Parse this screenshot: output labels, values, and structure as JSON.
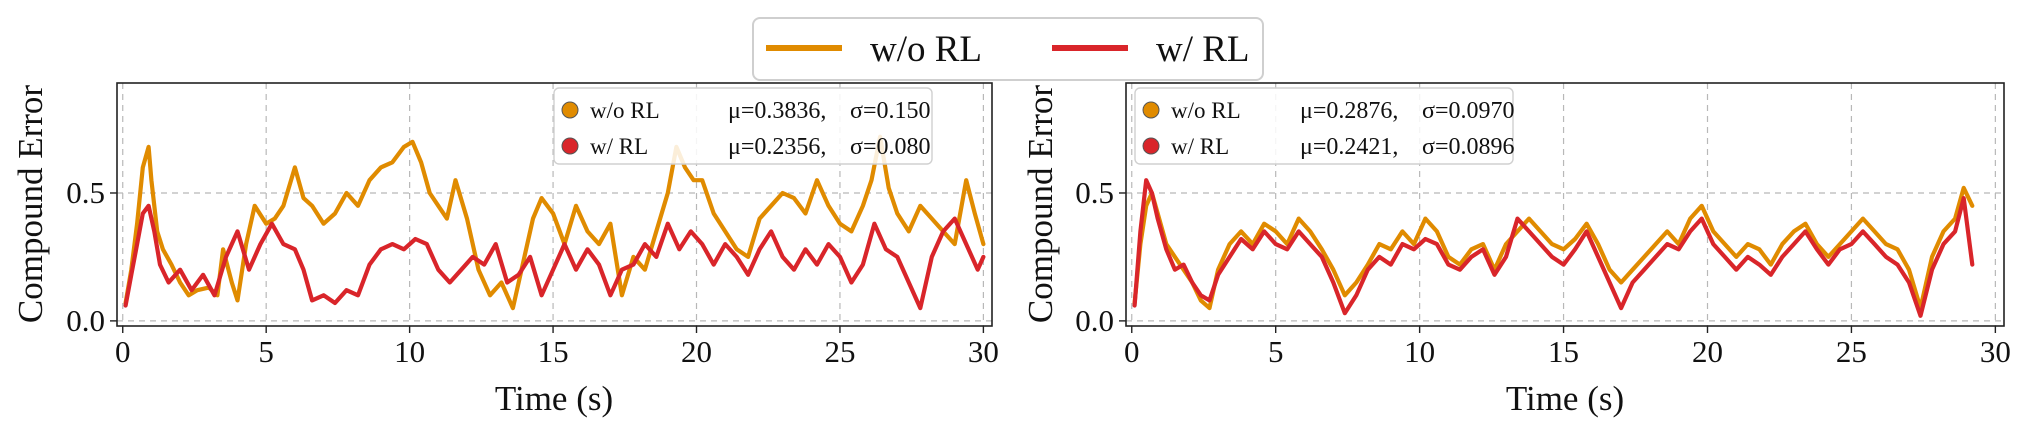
{
  "legend": {
    "items": [
      {
        "label": "w/o RL",
        "color": "#E08B00"
      },
      {
        "label": "w/ RL",
        "color": "#D9252A"
      }
    ]
  },
  "chart_data": [
    {
      "type": "line",
      "title": "",
      "xlabel": "Time (s)",
      "ylabel": "Compound Error",
      "xlim": [
        -0.2,
        30.3
      ],
      "ylim": [
        -0.02,
        0.93
      ],
      "xticks": [
        0,
        5,
        10,
        15,
        20,
        25,
        30
      ],
      "yticks": [
        0.0,
        0.5
      ],
      "xtick_labels": [
        "0",
        "5",
        "10",
        "15",
        "20",
        "25",
        "30"
      ],
      "ytick_labels": [
        "0.0",
        "0.5"
      ],
      "grid": true,
      "stats": [
        {
          "name": "w/o RL",
          "mu": "μ=0.3836,",
          "sigma": "σ=0.150"
        },
        {
          "name": "w/ RL",
          "mu": "μ=0.2356,",
          "sigma": "σ=0.080"
        }
      ],
      "series": [
        {
          "name": "w/o RL",
          "color": "#E08B00",
          "x": [
            0.1,
            0.3,
            0.5,
            0.7,
            0.9,
            1.0,
            1.2,
            1.4,
            1.7,
            2.0,
            2.3,
            2.6,
            3.0,
            3.3,
            3.5,
            3.8,
            4.0,
            4.3,
            4.6,
            5.0,
            5.3,
            5.6,
            6.0,
            6.3,
            6.6,
            7.0,
            7.4,
            7.8,
            8.2,
            8.6,
            9.0,
            9.4,
            9.8,
            10.1,
            10.4,
            10.7,
            11.0,
            11.3,
            11.6,
            12.0,
            12.4,
            12.8,
            13.2,
            13.6,
            14.0,
            14.3,
            14.6,
            15.0,
            15.4,
            15.8,
            16.2,
            16.6,
            17.0,
            17.4,
            17.8,
            18.2,
            18.6,
            19.0,
            19.3,
            19.6,
            19.9,
            20.2,
            20.6,
            21.0,
            21.4,
            21.8,
            22.2,
            22.6,
            23.0,
            23.4,
            23.8,
            24.2,
            24.6,
            25.0,
            25.4,
            25.8,
            26.1,
            26.4,
            26.7,
            27.0,
            27.4,
            27.8,
            28.2,
            28.6,
            29.0,
            29.4,
            29.7,
            30.0
          ],
          "y": [
            0.07,
            0.2,
            0.38,
            0.6,
            0.68,
            0.55,
            0.35,
            0.28,
            0.22,
            0.15,
            0.1,
            0.12,
            0.13,
            0.1,
            0.28,
            0.15,
            0.08,
            0.3,
            0.45,
            0.38,
            0.4,
            0.45,
            0.6,
            0.48,
            0.45,
            0.38,
            0.42,
            0.5,
            0.45,
            0.55,
            0.6,
            0.62,
            0.68,
            0.7,
            0.62,
            0.5,
            0.45,
            0.4,
            0.55,
            0.4,
            0.2,
            0.1,
            0.15,
            0.05,
            0.25,
            0.4,
            0.48,
            0.42,
            0.3,
            0.45,
            0.35,
            0.3,
            0.38,
            0.1,
            0.25,
            0.2,
            0.35,
            0.5,
            0.68,
            0.6,
            0.55,
            0.55,
            0.42,
            0.35,
            0.28,
            0.25,
            0.4,
            0.45,
            0.5,
            0.48,
            0.42,
            0.55,
            0.45,
            0.38,
            0.35,
            0.45,
            0.55,
            0.72,
            0.52,
            0.42,
            0.35,
            0.45,
            0.4,
            0.35,
            0.3,
            0.55,
            0.42,
            0.3
          ]
        },
        {
          "name": "w/ RL",
          "color": "#D9252A",
          "x": [
            0.1,
            0.3,
            0.5,
            0.7,
            0.9,
            1.1,
            1.3,
            1.6,
            2.0,
            2.4,
            2.8,
            3.2,
            3.6,
            4.0,
            4.4,
            4.8,
            5.2,
            5.6,
            6.0,
            6.3,
            6.6,
            7.0,
            7.4,
            7.8,
            8.2,
            8.6,
            9.0,
            9.4,
            9.8,
            10.2,
            10.6,
            11.0,
            11.4,
            11.8,
            12.2,
            12.6,
            13.0,
            13.4,
            13.8,
            14.2,
            14.6,
            15.0,
            15.4,
            15.8,
            16.2,
            16.6,
            17.0,
            17.4,
            17.8,
            18.2,
            18.6,
            19.0,
            19.4,
            19.8,
            20.2,
            20.6,
            21.0,
            21.4,
            21.8,
            22.2,
            22.6,
            23.0,
            23.4,
            23.8,
            24.2,
            24.6,
            25.0,
            25.4,
            25.8,
            26.2,
            26.6,
            27.0,
            27.4,
            27.8,
            28.2,
            28.6,
            29.0,
            29.4,
            29.8,
            30.0
          ],
          "y": [
            0.06,
            0.18,
            0.3,
            0.42,
            0.45,
            0.35,
            0.22,
            0.15,
            0.2,
            0.12,
            0.18,
            0.1,
            0.25,
            0.35,
            0.2,
            0.3,
            0.38,
            0.3,
            0.28,
            0.2,
            0.08,
            0.1,
            0.07,
            0.12,
            0.1,
            0.22,
            0.28,
            0.3,
            0.28,
            0.32,
            0.3,
            0.2,
            0.15,
            0.2,
            0.25,
            0.22,
            0.3,
            0.15,
            0.18,
            0.25,
            0.1,
            0.2,
            0.3,
            0.2,
            0.28,
            0.22,
            0.1,
            0.2,
            0.22,
            0.3,
            0.25,
            0.38,
            0.28,
            0.35,
            0.3,
            0.22,
            0.3,
            0.25,
            0.18,
            0.28,
            0.35,
            0.25,
            0.2,
            0.28,
            0.22,
            0.3,
            0.25,
            0.15,
            0.22,
            0.38,
            0.28,
            0.25,
            0.15,
            0.05,
            0.25,
            0.35,
            0.4,
            0.3,
            0.2,
            0.25
          ]
        }
      ]
    },
    {
      "type": "line",
      "title": "",
      "xlabel": "Time (s)",
      "ylabel": "Compound Error",
      "xlim": [
        -0.2,
        30.3
      ],
      "ylim": [
        -0.02,
        0.93
      ],
      "xticks": [
        0,
        5,
        10,
        15,
        20,
        25,
        30
      ],
      "yticks": [
        0.0,
        0.5
      ],
      "xtick_labels": [
        "0",
        "5",
        "10",
        "15",
        "20",
        "25",
        "30"
      ],
      "ytick_labels": [
        "0.0",
        "0.5"
      ],
      "grid": true,
      "stats": [
        {
          "name": "w/o RL",
          "mu": "μ=0.2876,",
          "sigma": "σ=0.0970"
        },
        {
          "name": "w/ RL",
          "mu": "μ=0.2421,",
          "sigma": "σ=0.0896"
        }
      ],
      "series": [
        {
          "name": "w/o RL",
          "color": "#E08B00",
          "x": [
            0.1,
            0.3,
            0.5,
            0.7,
            0.9,
            1.2,
            1.5,
            1.8,
            2.1,
            2.4,
            2.7,
            3.0,
            3.4,
            3.8,
            4.2,
            4.6,
            5.0,
            5.4,
            5.8,
            6.2,
            6.6,
            7.0,
            7.4,
            7.8,
            8.2,
            8.6,
            9.0,
            9.4,
            9.8,
            10.2,
            10.6,
            11.0,
            11.4,
            11.8,
            12.2,
            12.6,
            13.0,
            13.4,
            13.8,
            14.2,
            14.6,
            15.0,
            15.4,
            15.8,
            16.2,
            16.6,
            17.0,
            17.4,
            17.8,
            18.2,
            18.6,
            19.0,
            19.4,
            19.8,
            20.2,
            20.6,
            21.0,
            21.4,
            21.8,
            22.2,
            22.6,
            23.0,
            23.4,
            23.8,
            24.2,
            24.6,
            25.0,
            25.4,
            25.8,
            26.2,
            26.6,
            27.0,
            27.4,
            27.8,
            28.2,
            28.6,
            28.9,
            29.2
          ],
          "y": [
            0.07,
            0.3,
            0.45,
            0.5,
            0.42,
            0.3,
            0.25,
            0.2,
            0.15,
            0.08,
            0.05,
            0.2,
            0.3,
            0.35,
            0.3,
            0.38,
            0.35,
            0.3,
            0.4,
            0.35,
            0.28,
            0.2,
            0.1,
            0.15,
            0.22,
            0.3,
            0.28,
            0.35,
            0.3,
            0.4,
            0.35,
            0.25,
            0.22,
            0.28,
            0.3,
            0.2,
            0.3,
            0.35,
            0.4,
            0.35,
            0.3,
            0.28,
            0.32,
            0.38,
            0.3,
            0.2,
            0.15,
            0.2,
            0.25,
            0.3,
            0.35,
            0.3,
            0.4,
            0.45,
            0.35,
            0.3,
            0.25,
            0.3,
            0.28,
            0.22,
            0.3,
            0.35,
            0.38,
            0.3,
            0.25,
            0.3,
            0.35,
            0.4,
            0.35,
            0.3,
            0.28,
            0.2,
            0.05,
            0.25,
            0.35,
            0.4,
            0.52,
            0.45
          ]
        },
        {
          "name": "w/ RL",
          "color": "#D9252A",
          "x": [
            0.1,
            0.3,
            0.5,
            0.7,
            0.9,
            1.2,
            1.5,
            1.8,
            2.1,
            2.4,
            2.7,
            3.0,
            3.4,
            3.8,
            4.2,
            4.6,
            5.0,
            5.4,
            5.8,
            6.2,
            6.6,
            7.0,
            7.4,
            7.8,
            8.2,
            8.6,
            9.0,
            9.4,
            9.8,
            10.2,
            10.6,
            11.0,
            11.4,
            11.8,
            12.2,
            12.6,
            13.0,
            13.4,
            13.8,
            14.2,
            14.6,
            15.0,
            15.4,
            15.8,
            16.2,
            16.6,
            17.0,
            17.4,
            17.8,
            18.2,
            18.6,
            19.0,
            19.4,
            19.8,
            20.2,
            20.6,
            21.0,
            21.4,
            21.8,
            22.2,
            22.6,
            23.0,
            23.4,
            23.8,
            24.2,
            24.6,
            25.0,
            25.4,
            25.8,
            26.2,
            26.6,
            27.0,
            27.4,
            27.8,
            28.2,
            28.6,
            28.9,
            29.2
          ],
          "y": [
            0.06,
            0.35,
            0.55,
            0.5,
            0.4,
            0.28,
            0.2,
            0.22,
            0.15,
            0.1,
            0.08,
            0.18,
            0.25,
            0.32,
            0.28,
            0.35,
            0.3,
            0.28,
            0.35,
            0.3,
            0.25,
            0.15,
            0.03,
            0.1,
            0.2,
            0.25,
            0.22,
            0.3,
            0.28,
            0.32,
            0.3,
            0.22,
            0.2,
            0.25,
            0.28,
            0.18,
            0.25,
            0.4,
            0.35,
            0.3,
            0.25,
            0.22,
            0.28,
            0.35,
            0.25,
            0.15,
            0.05,
            0.15,
            0.2,
            0.25,
            0.3,
            0.28,
            0.35,
            0.4,
            0.3,
            0.25,
            0.2,
            0.25,
            0.22,
            0.18,
            0.25,
            0.3,
            0.35,
            0.28,
            0.22,
            0.28,
            0.3,
            0.35,
            0.3,
            0.25,
            0.22,
            0.15,
            0.02,
            0.2,
            0.3,
            0.35,
            0.48,
            0.22
          ]
        }
      ]
    }
  ]
}
